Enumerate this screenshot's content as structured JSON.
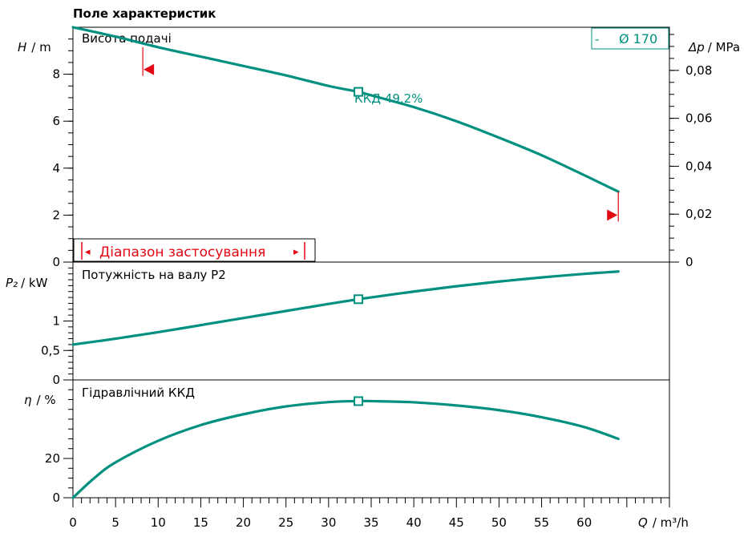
{
  "title": "Поле характеристик",
  "colors": {
    "curve": "#00907f",
    "range": "#e30613",
    "axis": "#000000"
  },
  "x_axis": {
    "symbol": "Q",
    "unit": "/ m³/h",
    "ticks": [
      0,
      5,
      10,
      15,
      20,
      25,
      30,
      35,
      40,
      45,
      50,
      55,
      60
    ],
    "range": [
      0,
      70
    ]
  },
  "legend": {
    "dash": "-",
    "label": "Ø 170"
  },
  "annotation": {
    "label": "ККД  49,2%"
  },
  "range_box": {
    "label": "Діапазон застосування",
    "left_marker": "◂",
    "right_marker": "▸"
  },
  "chart_data": [
    {
      "type": "line",
      "panel_label": "Висота подачі",
      "ylabel_symbol": "H",
      "ylabel_unit": "/ m",
      "y2label_symbol": "Δp",
      "y2label_unit": "/ MPa",
      "ylim": [
        0,
        10
      ],
      "yticks": [
        0,
        2,
        4,
        6,
        8
      ],
      "y2lim": [
        0,
        0.098
      ],
      "y2ticks": [
        "0",
        "0,02",
        "0,04",
        "0,06",
        "0,08"
      ],
      "y2tick_values": [
        0,
        0.02,
        0.04,
        0.06,
        0.08
      ],
      "grid": false,
      "series": [
        {
          "name": "Ø 170",
          "x": [
            0,
            5,
            10,
            15,
            20,
            25,
            30,
            33.5,
            35,
            40,
            45,
            50,
            55,
            60,
            64
          ],
          "y": [
            10.0,
            9.6,
            9.15,
            8.75,
            8.35,
            7.95,
            7.5,
            7.25,
            7.1,
            6.6,
            6.0,
            5.3,
            4.55,
            3.7,
            3.0
          ]
        }
      ],
      "operating_point": {
        "x": 33.5,
        "y": 7.25
      },
      "application_range": {
        "x_min": 8.2,
        "x_max": 64,
        "y_at_min": 8.2,
        "y_at_max": 2.0
      }
    },
    {
      "type": "line",
      "panel_label": "Потужність на валу P2",
      "ylabel_symbol": "P₂",
      "ylabel_unit": "/ kW",
      "ylim": [
        0,
        2
      ],
      "yticks": [
        "0",
        "0,5",
        "1"
      ],
      "ytick_values": [
        0,
        0.5,
        1
      ],
      "grid": false,
      "series": [
        {
          "name": "Ø 170",
          "x": [
            0,
            5,
            10,
            15,
            20,
            25,
            30,
            33.5,
            35,
            40,
            45,
            50,
            55,
            60,
            64
          ],
          "y": [
            0.6,
            0.7,
            0.81,
            0.93,
            1.05,
            1.17,
            1.29,
            1.37,
            1.4,
            1.5,
            1.59,
            1.67,
            1.74,
            1.8,
            1.84
          ]
        }
      ],
      "operating_point": {
        "x": 33.5,
        "y": 1.37
      }
    },
    {
      "type": "line",
      "panel_label": "Гідравлічний ККД",
      "ylabel_symbol": "η",
      "ylabel_unit": "/ %",
      "ylim": [
        0,
        60
      ],
      "yticks": [
        0,
        20
      ],
      "grid": false,
      "series": [
        {
          "name": "Ø 170",
          "x": [
            0,
            2.5,
            5,
            10,
            15,
            20,
            25,
            30,
            33.5,
            35,
            40,
            45,
            50,
            55,
            60,
            64
          ],
          "y": [
            0,
            10,
            18,
            29,
            37,
            42.5,
            46.5,
            48.7,
            49.2,
            49.2,
            48.6,
            47,
            44.6,
            41,
            36,
            30
          ]
        }
      ],
      "operating_point": {
        "x": 33.5,
        "y": 49.2
      }
    }
  ]
}
